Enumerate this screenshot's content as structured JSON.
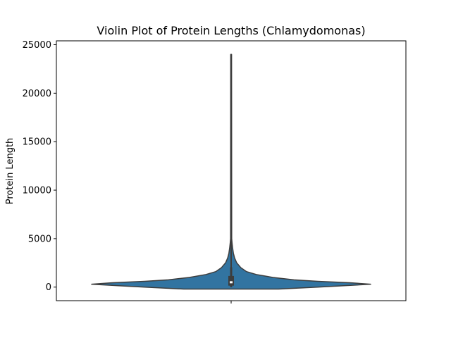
{
  "chart_data": {
    "type": "violin",
    "title": "Violin Plot of Protein Lengths (Chlamydomonas)",
    "xlabel": "",
    "ylabel": "Protein Length",
    "ylim": [
      -1400,
      25400
    ],
    "yticks": [
      0,
      5000,
      10000,
      15000,
      20000,
      25000
    ],
    "ytick_labels": [
      "0",
      "5000",
      "10000",
      "15000",
      "20000",
      "25000"
    ],
    "grid": false,
    "colors": {
      "fill": "#3274a1",
      "edge": "#3d3d3d",
      "box": "#3d3d3d",
      "median": "#ffffff"
    },
    "violin": {
      "profile": [
        {
          "y": -200,
          "half_width": 0.34
        },
        {
          "y": 0,
          "half_width": 0.62
        },
        {
          "y": 150,
          "half_width": 0.82
        },
        {
          "y": 300,
          "half_width": 1.0
        },
        {
          "y": 450,
          "half_width": 0.85
        },
        {
          "y": 600,
          "half_width": 0.62
        },
        {
          "y": 750,
          "half_width": 0.45
        },
        {
          "y": 1000,
          "half_width": 0.3
        },
        {
          "y": 1300,
          "half_width": 0.18
        },
        {
          "y": 1600,
          "half_width": 0.11
        },
        {
          "y": 2000,
          "half_width": 0.07
        },
        {
          "y": 2500,
          "half_width": 0.04
        },
        {
          "y": 3000,
          "half_width": 0.025
        },
        {
          "y": 3500,
          "half_width": 0.016
        },
        {
          "y": 4000,
          "half_width": 0.011
        },
        {
          "y": 4500,
          "half_width": 0.007
        },
        {
          "y": 5000,
          "half_width": 0.004
        },
        {
          "y": 24000,
          "half_width": 0.003
        }
      ],
      "box": {
        "q1": 150,
        "median": 500,
        "q3": 1150,
        "whisker_low": 0,
        "whisker_high": 2050,
        "max": 24000
      }
    }
  }
}
